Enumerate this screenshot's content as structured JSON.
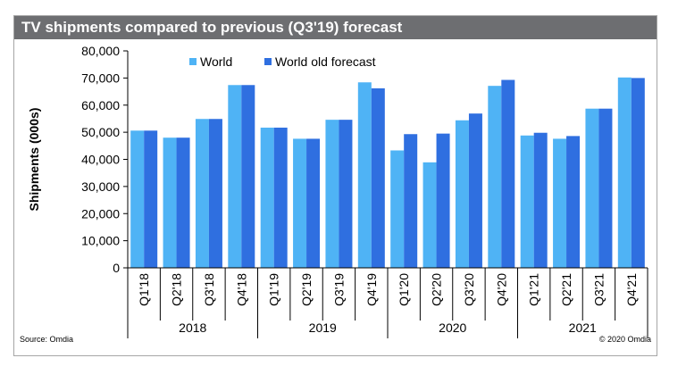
{
  "chart_data": {
    "type": "bar",
    "title": "TV shipments compared to previous (Q3'19) forecast",
    "ylabel": "Shipments (000s)",
    "xlabel": "",
    "ylim": [
      0,
      80000
    ],
    "yticks": [
      "0",
      "10,000",
      "20,000",
      "30,000",
      "40,000",
      "50,000",
      "60,000",
      "70,000",
      "80,000"
    ],
    "grid": false,
    "legend_position": "top-left",
    "categories": [
      "Q1'18",
      "Q2'18",
      "Q3'18",
      "Q4'18",
      "Q1'19",
      "Q2'19",
      "Q3'19",
      "Q4'19",
      "Q1'20",
      "Q2'20",
      "Q3'20",
      "Q4'20",
      "Q1'21",
      "Q2'21",
      "Q3'21",
      "Q4'21"
    ],
    "groups": [
      {
        "label": "2018",
        "count": 4
      },
      {
        "label": "2019",
        "count": 4
      },
      {
        "label": "2020",
        "count": 4
      },
      {
        "label": "2021",
        "count": 4
      }
    ],
    "series": [
      {
        "name": "World",
        "color": "#4fb3f5",
        "values": [
          50600,
          48000,
          54900,
          67400,
          51700,
          47600,
          54600,
          68400,
          43300,
          38900,
          54400,
          67100,
          48800,
          47600,
          58700,
          70200
        ]
      },
      {
        "name": "World old forecast",
        "color": "#2f6fe0",
        "values": [
          50600,
          48000,
          54900,
          67400,
          51700,
          47600,
          54600,
          66200,
          49300,
          49500,
          56900,
          69300,
          49800,
          48600,
          58700,
          70000
        ]
      }
    ]
  },
  "footer": {
    "source": "Source: Omdia",
    "copyright": "© 2020 Omdia"
  }
}
